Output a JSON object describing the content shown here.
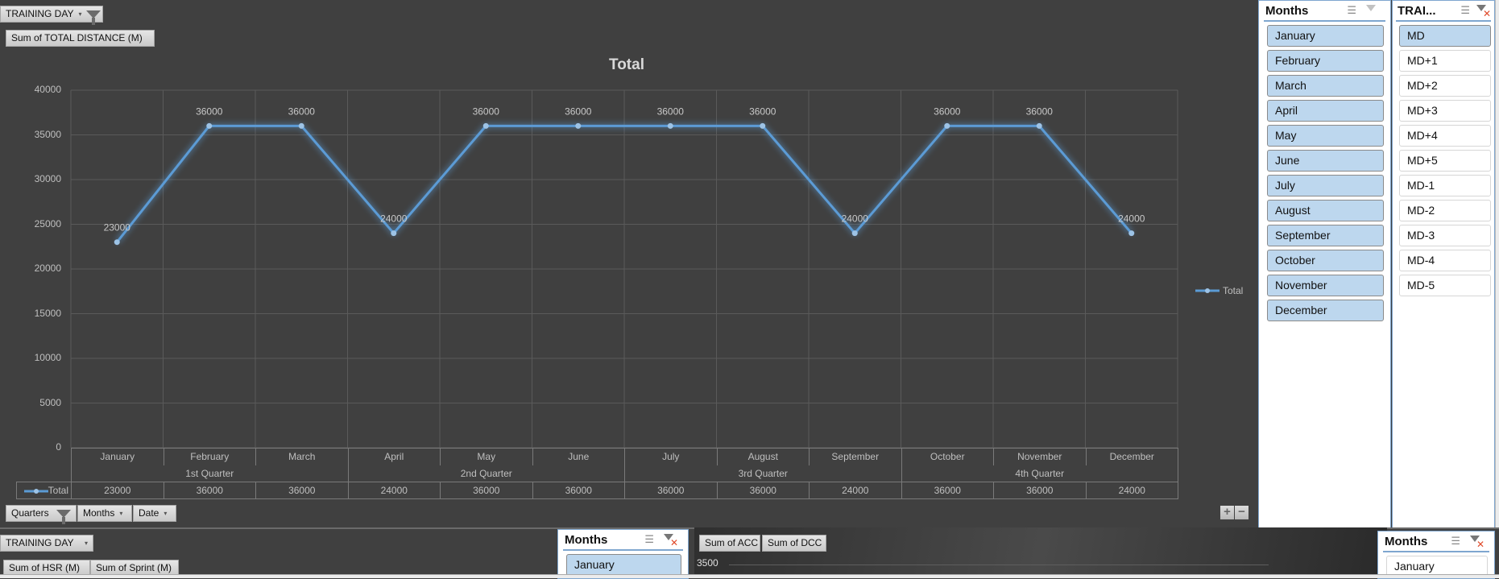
{
  "top_pivot": {
    "filter_button": "TRAINING DAY",
    "value_button": "Sum of TOTAL DISTANCE (M)",
    "axis_buttons": [
      {
        "label": "Quarters",
        "filtered": true
      },
      {
        "label": "Months",
        "filtered": false
      },
      {
        "label": "Date",
        "filtered": false
      }
    ]
  },
  "chart_data": {
    "type": "line",
    "title": "Total",
    "categories": [
      "January",
      "February",
      "March",
      "April",
      "May",
      "June",
      "July",
      "August",
      "September",
      "October",
      "November",
      "December"
    ],
    "category_groups": [
      {
        "label": "1st Quarter",
        "span": 3
      },
      {
        "label": "2nd Quarter",
        "span": 3
      },
      {
        "label": "3rd Quarter",
        "span": 3
      },
      {
        "label": "4th Quarter",
        "span": 3
      }
    ],
    "series": [
      {
        "name": "Total",
        "color": "#5b9bd5",
        "values": [
          23000,
          36000,
          36000,
          24000,
          36000,
          36000,
          36000,
          36000,
          24000,
          36000,
          36000,
          24000
        ]
      }
    ],
    "yticks": [
      "40000",
      "35000",
      "30000",
      "25000",
      "20000",
      "15000",
      "10000",
      "5000",
      "0"
    ],
    "ylim": [
      0,
      40000
    ],
    "xlabel": "",
    "ylabel": "",
    "grid": true,
    "legend": {
      "position": "right",
      "entries": [
        "Total"
      ]
    },
    "data_labels": true,
    "data_table": true
  },
  "chart_zoom": {
    "plus": "+",
    "minus": "−"
  },
  "slicer_months": {
    "title": "Months",
    "items": [
      {
        "label": "January",
        "selected": true
      },
      {
        "label": "February",
        "selected": true
      },
      {
        "label": "March",
        "selected": true
      },
      {
        "label": "April",
        "selected": true
      },
      {
        "label": "May",
        "selected": true
      },
      {
        "label": "June",
        "selected": true
      },
      {
        "label": "July",
        "selected": true
      },
      {
        "label": "August",
        "selected": true
      },
      {
        "label": "September",
        "selected": true
      },
      {
        "label": "October",
        "selected": true
      },
      {
        "label": "November",
        "selected": true
      },
      {
        "label": "December",
        "selected": true
      }
    ]
  },
  "slicer_training": {
    "title": "TRAI...",
    "items": [
      {
        "label": "MD",
        "selected": true
      },
      {
        "label": "MD+1",
        "selected": false
      },
      {
        "label": "MD+2",
        "selected": false
      },
      {
        "label": "MD+3",
        "selected": false
      },
      {
        "label": "MD+4",
        "selected": false
      },
      {
        "label": "MD+5",
        "selected": false
      },
      {
        "label": "MD-1",
        "selected": false
      },
      {
        "label": "MD-2",
        "selected": false
      },
      {
        "label": "MD-3",
        "selected": false
      },
      {
        "label": "MD-4",
        "selected": false
      },
      {
        "label": "MD-5",
        "selected": false
      }
    ]
  },
  "lower": {
    "filter_button": "TRAINING DAY",
    "value_buttons": [
      "Sum of HSR (M)",
      "Sum of Sprint (M)"
    ],
    "months_slicer": {
      "title": "Months",
      "first_item": "January"
    },
    "acc_chart": {
      "buttons": [
        "Sum of ACC",
        "Sum of DCC"
      ],
      "ytick": "3500"
    },
    "right_months_slicer": {
      "title": "Months",
      "first_item": "January"
    }
  },
  "icons": {
    "multiselect": "☰",
    "dropdown": "▾"
  }
}
